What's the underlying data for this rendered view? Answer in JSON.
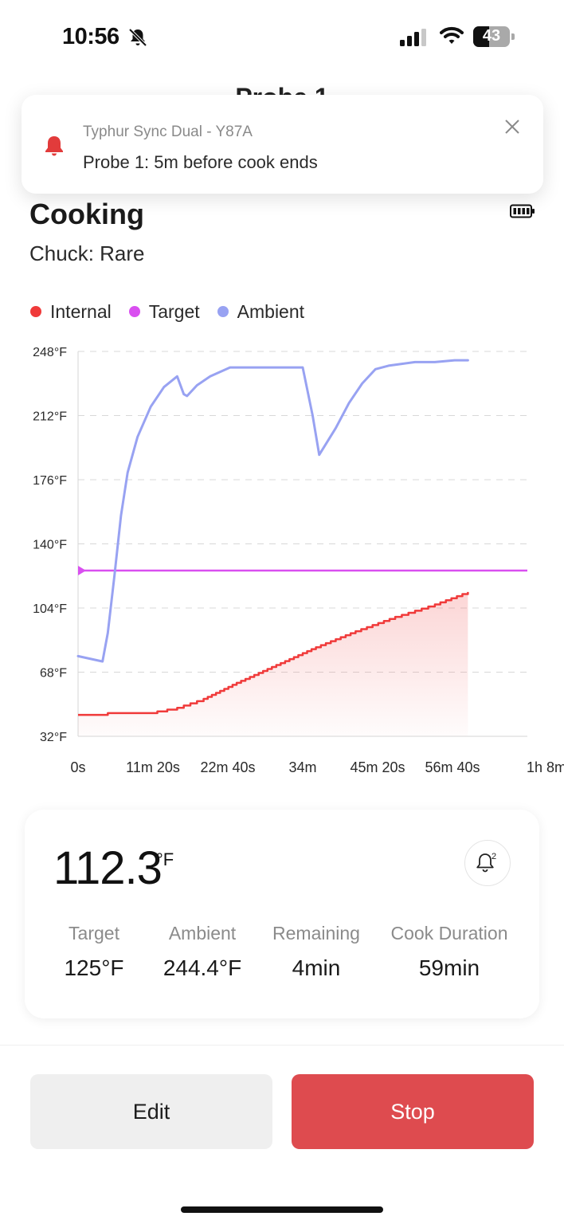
{
  "status_bar": {
    "time": "10:56",
    "battery_level": "43"
  },
  "page": {
    "title": "Probe 1"
  },
  "notification": {
    "source": "Typhur Sync Dual - Y87A",
    "message": "Probe 1: 5m before cook ends"
  },
  "cook": {
    "status": "Cooking",
    "preset": "Chuck: Rare"
  },
  "legend": [
    {
      "label": "Internal",
      "color": "#f03a3a"
    },
    {
      "label": "Target",
      "color": "#d94ff0"
    },
    {
      "label": "Ambient",
      "color": "#98a2f2"
    }
  ],
  "chart_data": {
    "type": "line",
    "title": "",
    "xlabel": "",
    "ylabel": "",
    "x_unit": "minutes",
    "xlim": [
      0,
      68
    ],
    "ylim": [
      32,
      248
    ],
    "y_ticks": [
      "248°F",
      "212°F",
      "176°F",
      "140°F",
      "104°F",
      "68°F",
      "32°F"
    ],
    "x_ticks": [
      "0s",
      "11m 20s",
      "22m 40s",
      "34m",
      "45m 20s",
      "56m 40s",
      "1h 8m"
    ],
    "grid": "horizontal dashed",
    "series": [
      {
        "name": "Internal",
        "x": [
          0,
          4.5,
          10,
          12,
          15,
          19,
          24,
          30,
          36,
          42,
          48,
          54,
          59
        ],
        "y": [
          44,
          45,
          45,
          46,
          48,
          53,
          62,
          72,
          82,
          91,
          99,
          106,
          113
        ]
      },
      {
        "name": "Target",
        "x": [
          0,
          68
        ],
        "y": [
          125,
          125
        ]
      },
      {
        "name": "Ambient",
        "x": [
          0,
          3.7,
          4.5,
          5.5,
          6.5,
          7.5,
          9,
          11,
          13,
          15,
          16,
          16.5,
          18,
          20,
          23,
          26,
          30,
          34,
          35.5,
          36.5,
          37.5,
          39,
          41,
          43,
          45,
          47,
          49,
          51,
          54,
          57,
          59
        ],
        "y": [
          77,
          74,
          90,
          122,
          156,
          180,
          200,
          217,
          228,
          234,
          224,
          223,
          229,
          234,
          239,
          239,
          239,
          239,
          212,
          190,
          196,
          205,
          219,
          230,
          238,
          240,
          241,
          242,
          242,
          243,
          243
        ]
      }
    ]
  },
  "summary": {
    "current_temp": "112.3",
    "unit": "°F",
    "alarm_count": "2",
    "stats": [
      {
        "label": "Target",
        "value": "125°F"
      },
      {
        "label": "Ambient",
        "value": "244.4°F"
      },
      {
        "label": "Remaining",
        "value": "4min"
      },
      {
        "label": "Cook Duration",
        "value": "59min"
      }
    ]
  },
  "actions": {
    "edit_label": "Edit",
    "stop_label": "Stop"
  }
}
